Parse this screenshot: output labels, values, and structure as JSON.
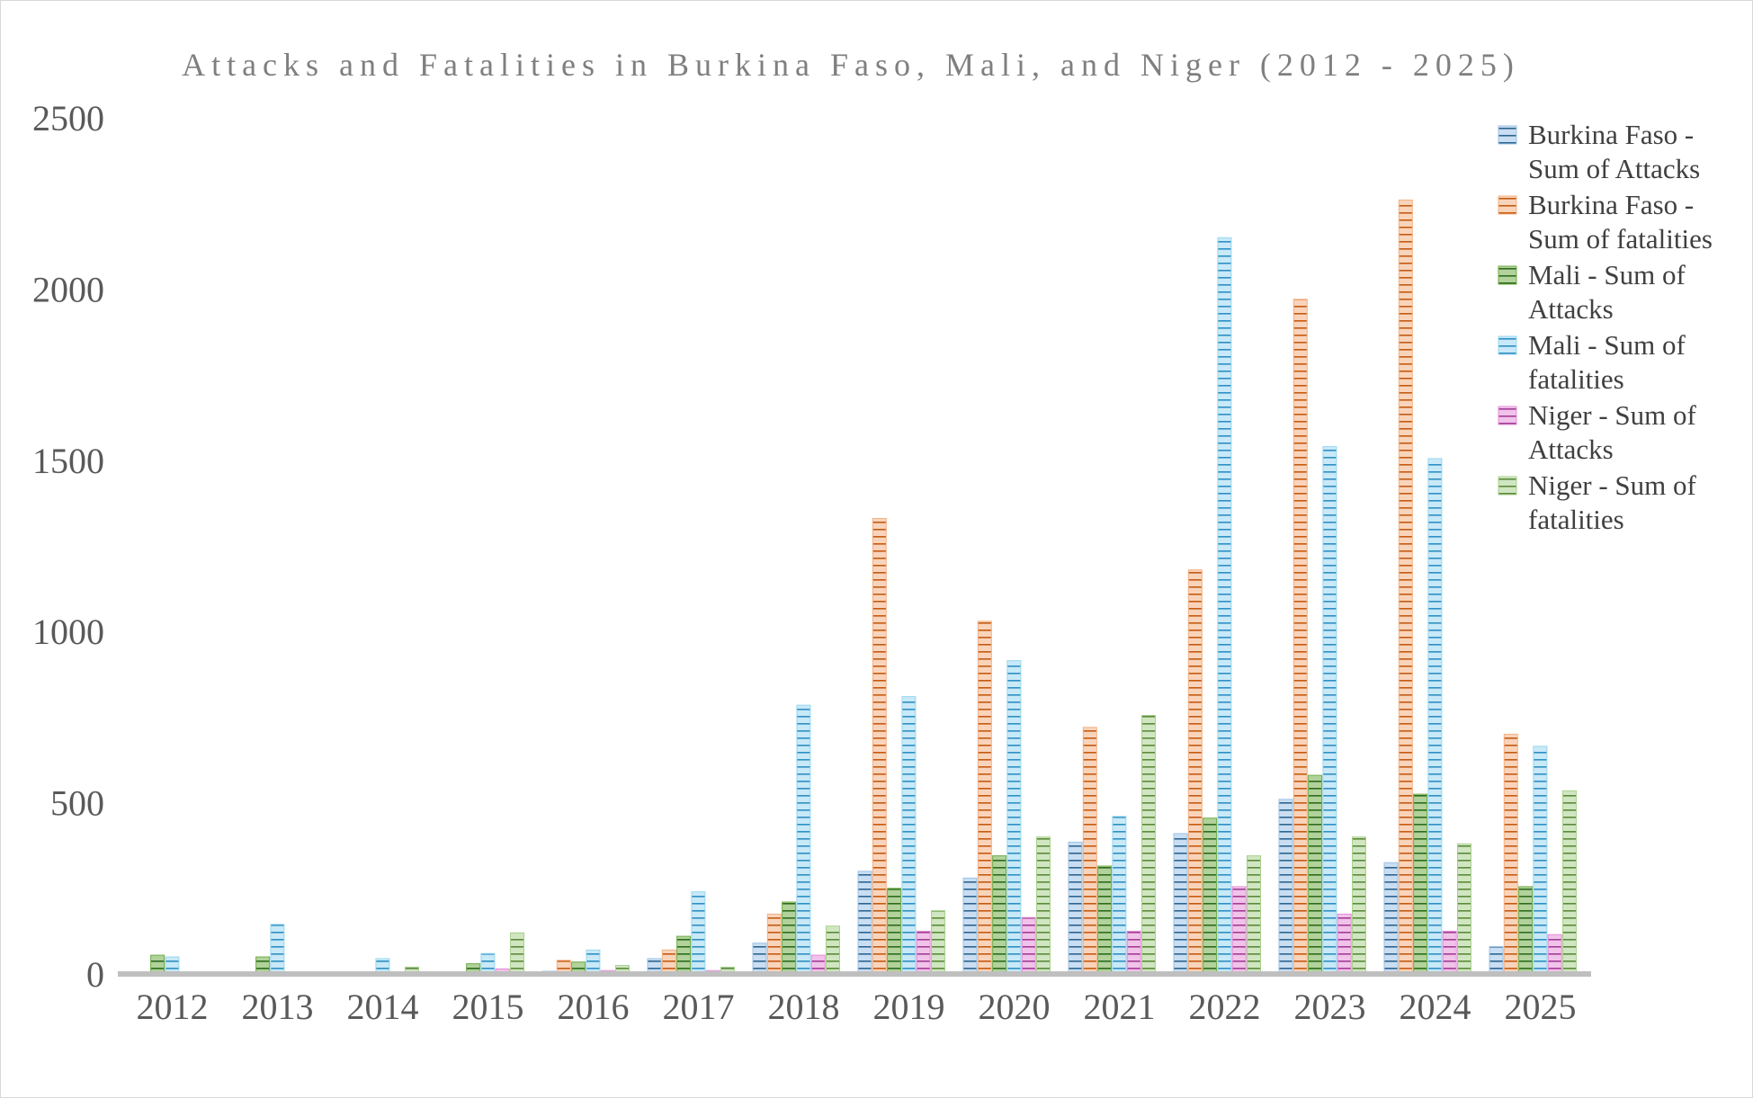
{
  "chart_data": {
    "type": "bar",
    "title": "Attacks and Fatalities in Burkina Faso, Mali, and Niger (2012 - 2025)",
    "xlabel": "",
    "ylabel": "",
    "ylim": [
      0,
      2500
    ],
    "yticks": [
      0,
      500,
      1000,
      1500,
      2000,
      2500
    ],
    "grid": false,
    "legend_position": "top-right",
    "categories": [
      "2012",
      "2013",
      "2014",
      "2015",
      "2016",
      "2017",
      "2018",
      "2019",
      "2020",
      "2021",
      "2022",
      "2023",
      "2024",
      "2025"
    ],
    "series": [
      {
        "name": "Burkina Faso - Sum of Attacks",
        "color": "#9dc3e6",
        "stripe": "#2e6490",
        "values": [
          5,
          3,
          3,
          5,
          8,
          45,
          90,
          300,
          280,
          385,
          410,
          510,
          325,
          80
        ]
      },
      {
        "name": "Burkina Faso - Sum of fatalities",
        "color": "#f4b183",
        "stripe": "#c55a11",
        "values": [
          5,
          2,
          2,
          5,
          40,
          70,
          175,
          1330,
          1030,
          720,
          1180,
          1970,
          2260,
          700
        ]
      },
      {
        "name": "Mali - Sum of Attacks",
        "color": "#70ad47",
        "stripe": "#2e6b1f",
        "values": [
          55,
          50,
          5,
          30,
          35,
          110,
          210,
          250,
          345,
          315,
          455,
          580,
          525,
          255
        ]
      },
      {
        "name": "Mali - Sum of fatalities",
        "color": "#9ad7f0",
        "stripe": "#2e8fc4",
        "values": [
          50,
          145,
          45,
          60,
          70,
          240,
          785,
          810,
          915,
          460,
          2150,
          1540,
          1505,
          665
        ]
      },
      {
        "name": "Niger - Sum of Attacks",
        "color": "#e58fd8",
        "stripe": "#a33c94",
        "values": [
          5,
          3,
          3,
          15,
          10,
          10,
          55,
          125,
          165,
          125,
          255,
          175,
          125,
          115
        ]
      },
      {
        "name": "Niger - Sum of fatalities",
        "color": "#a9d18e",
        "stripe": "#5c8a3a",
        "values": [
          5,
          3,
          20,
          120,
          25,
          20,
          140,
          185,
          400,
          755,
          345,
          400,
          380,
          535
        ]
      }
    ]
  }
}
